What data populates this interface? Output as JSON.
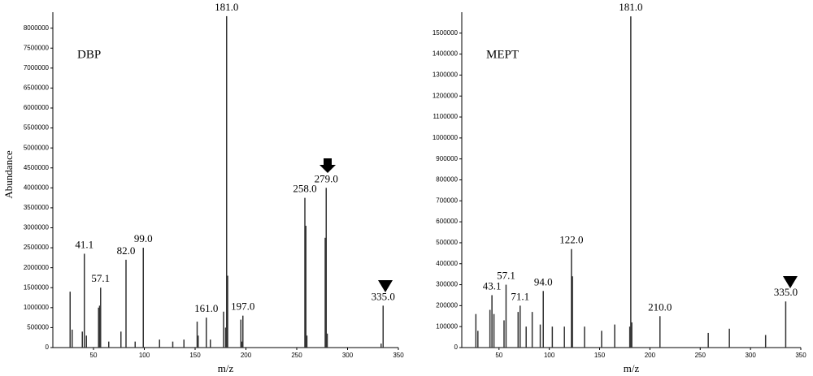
{
  "chart_data": [
    {
      "type": "bar",
      "title": "DBP",
      "y_label": "Abundance",
      "x_label": "m/z",
      "color": "#333333",
      "x": [
        27,
        29,
        39,
        41,
        43,
        55,
        56,
        57,
        65,
        77,
        82,
        91,
        99,
        115,
        128,
        139,
        152,
        153,
        161,
        165,
        178,
        180,
        181,
        182,
        195,
        196,
        197,
        258,
        259,
        260,
        278,
        279,
        280,
        333,
        335
      ],
      "values": [
        1400000,
        450000,
        400000,
        2350000,
        300000,
        1000000,
        1050000,
        1500000,
        150000,
        400000,
        2200000,
        150000,
        2500000,
        200000,
        150000,
        200000,
        650000,
        300000,
        750000,
        200000,
        900000,
        500000,
        8300000,
        1800000,
        700000,
        150000,
        800000,
        3750000,
        3050000,
        300000,
        2750000,
        4000000,
        350000,
        100000,
        1050000
      ],
      "point_labels": [
        null,
        null,
        null,
        "41.1",
        null,
        null,
        null,
        "57.1",
        null,
        null,
        "82.0",
        null,
        "99.0",
        null,
        null,
        null,
        null,
        null,
        "161.0",
        null,
        null,
        null,
        "181.0",
        null,
        null,
        null,
        "197.0",
        "258.0",
        null,
        null,
        null,
        "279.0",
        null,
        null,
        "335.0"
      ],
      "xlim": [
        10,
        350
      ],
      "xticks": [
        50,
        100,
        150,
        200,
        250,
        300,
        350
      ],
      "ylim": [
        0,
        8400000
      ],
      "yticks": [
        0,
        500000,
        1000000,
        1500000,
        2000000,
        2500000,
        3000000,
        3500000,
        4000000,
        4500000,
        5000000,
        5500000,
        6000000,
        6500000,
        7000000,
        7500000,
        8000000
      ]
    },
    {
      "type": "bar",
      "title": "MEPT",
      "x_label": "m/z",
      "color": "#333333",
      "x": [
        27,
        29,
        41,
        43,
        45,
        55,
        57,
        69,
        71,
        77,
        83,
        91,
        94,
        103,
        115,
        122,
        123,
        135,
        152,
        165,
        180,
        181,
        182,
        210,
        258,
        279,
        315,
        335
      ],
      "values": [
        160000,
        80000,
        180000,
        250000,
        160000,
        130000,
        300000,
        170000,
        200000,
        100000,
        170000,
        110000,
        270000,
        100000,
        100000,
        470000,
        340000,
        100000,
        80000,
        110000,
        100000,
        1580000,
        120000,
        150000,
        70000,
        90000,
        60000,
        220000
      ],
      "point_labels": [
        null,
        null,
        null,
        "43.1",
        null,
        null,
        "57.1",
        null,
        "71.1",
        null,
        null,
        null,
        "94.0",
        null,
        null,
        "122.0",
        null,
        null,
        null,
        null,
        null,
        "181.0",
        null,
        "210.0",
        null,
        null,
        null,
        "335.0"
      ],
      "xlim": [
        13,
        350
      ],
      "xticks": [
        50,
        100,
        150,
        200,
        250,
        300,
        350
      ],
      "ylim": [
        0,
        1600000
      ],
      "yticks": [
        0,
        100000,
        200000,
        300000,
        400000,
        500000,
        600000,
        700000,
        800000,
        900000,
        1000000,
        1100000,
        1200000,
        1300000,
        1400000,
        1500000
      ]
    }
  ]
}
